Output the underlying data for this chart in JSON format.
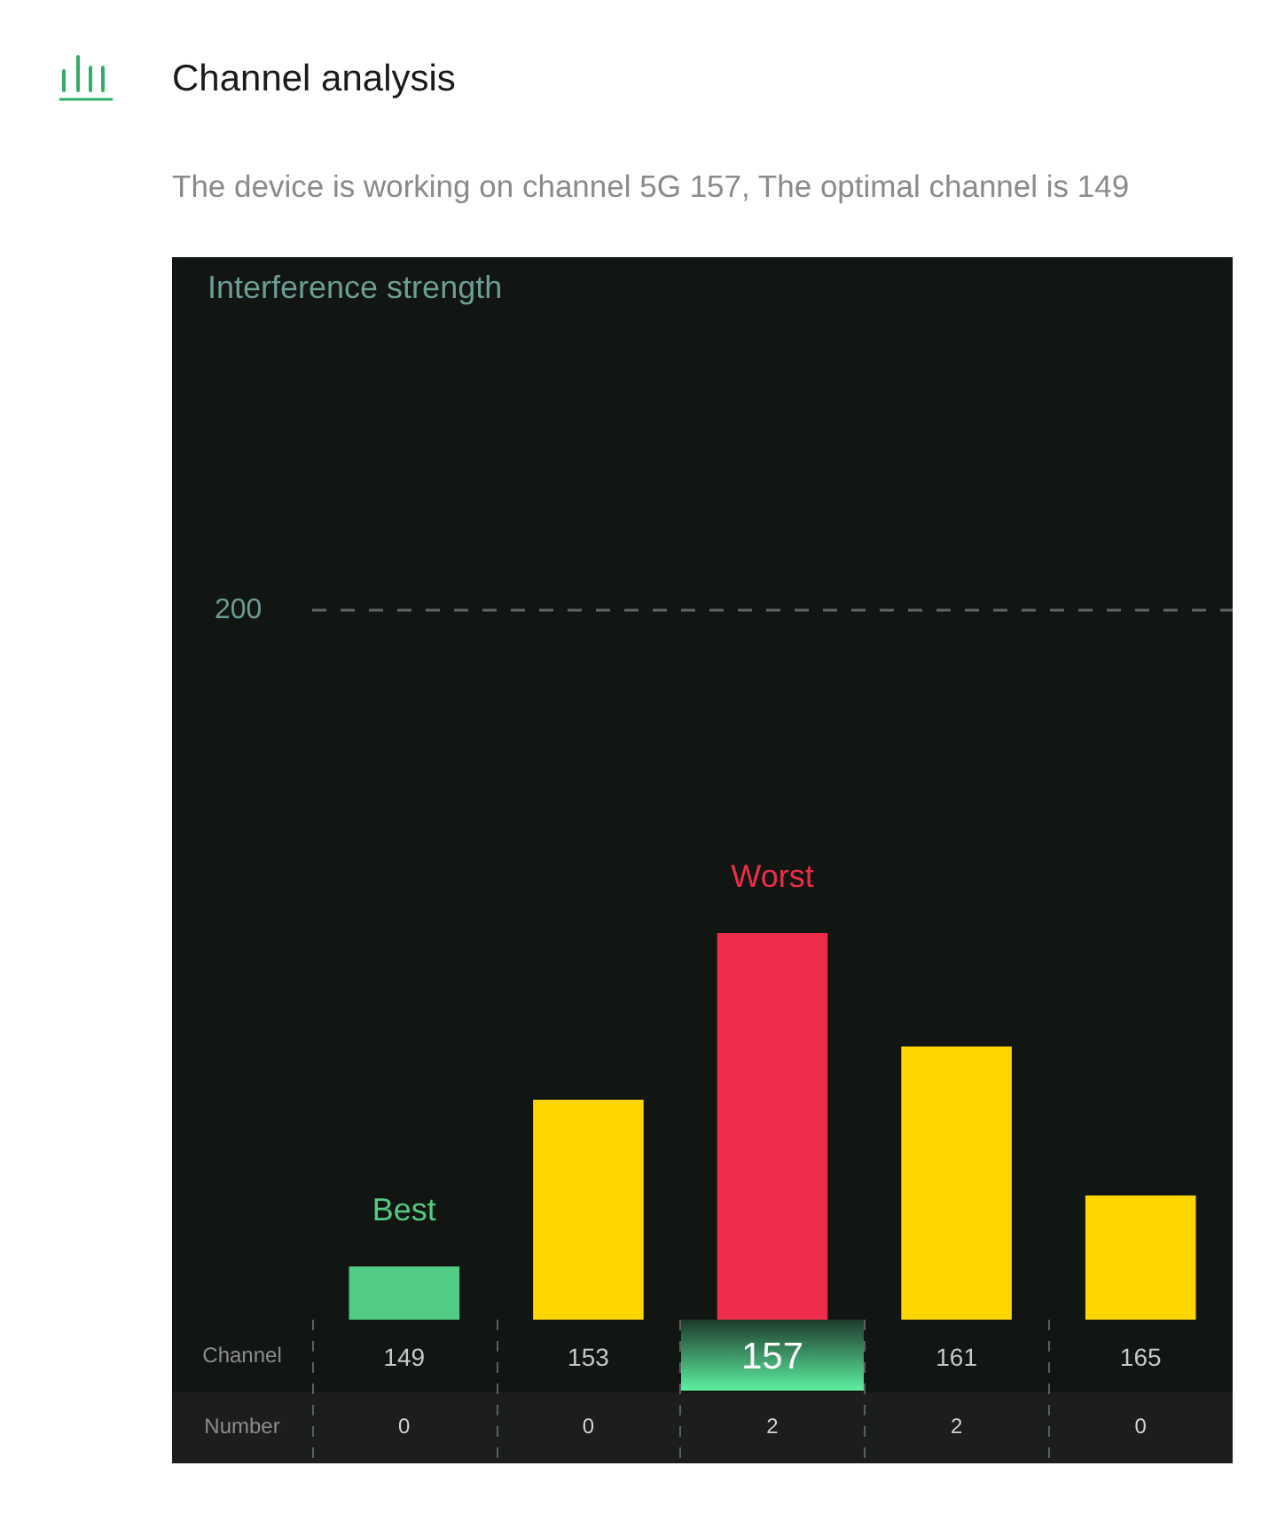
{
  "chart_data": {
    "type": "bar",
    "title": "Channel analysis",
    "subtitle": "The device is working on channel 5G 157, The optimal channel is 149",
    "xlabel": "Channel",
    "categories": [
      "149",
      "153",
      "157",
      "161",
      "165"
    ],
    "values": [
      15,
      62,
      109,
      77,
      35
    ],
    "colors": [
      "#52cc84",
      "#ffd600",
      "#ee2d4b",
      "#ffd600",
      "#ffd600"
    ],
    "ylim": [
      0,
      200
    ],
    "yticks": [
      200
    ],
    "ref_lines": [
      {
        "axis": "y",
        "value": 200,
        "color": "#5f6663",
        "line_style": "dashed"
      }
    ],
    "annotations": [
      "Interference strength",
      {
        "text": "Best",
        "x": "149",
        "y": 15
      },
      {
        "text": "Worst",
        "x": "157",
        "y": 109
      },
      "Number",
      "0",
      "0",
      "2",
      "2",
      "0"
    ]
  }
}
